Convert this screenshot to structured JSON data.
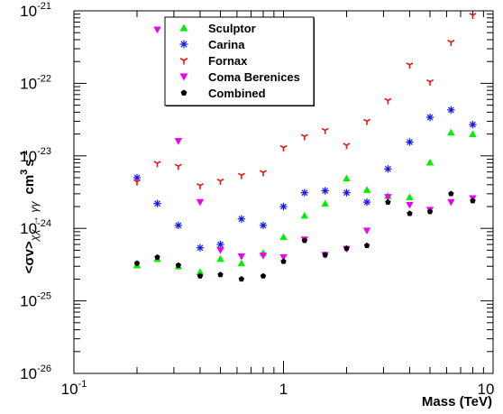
{
  "chart_data": {
    "type": "scatter",
    "xlabel": "Mass (TeV)",
    "ylabel": "<σv>χχ → γγ cm³ s⁻¹",
    "ylabel_parts": {
      "main": "<σv>",
      "sub": "χχ → γγ",
      "unit": "cm",
      "unit_exp": "3",
      "unit2": "s",
      "unit2_exp": "-1"
    },
    "x_scale": "log",
    "y_scale": "log",
    "xlim": [
      0.1,
      10
    ],
    "ylim": [
      1e-26,
      1e-21
    ],
    "x_tick_labels": [
      {
        "value": 0.1,
        "base": "10",
        "exp": "-1"
      },
      {
        "value": 1,
        "base": "1",
        "exp": ""
      },
      {
        "value": 10,
        "base": "10",
        "exp": ""
      }
    ],
    "y_tick_labels": [
      {
        "value": 1e-26,
        "base": "10",
        "exp": "-26"
      },
      {
        "value": 1e-25,
        "base": "10",
        "exp": "-25"
      },
      {
        "value": 1e-24,
        "base": "10",
        "exp": "-24"
      },
      {
        "value": 1e-23,
        "base": "10",
        "exp": "-23"
      },
      {
        "value": 1e-22,
        "base": "10",
        "exp": "-22"
      },
      {
        "value": 1e-21,
        "base": "10",
        "exp": "-21"
      }
    ],
    "legend_position": "top-center",
    "x": [
      0.2,
      0.25,
      0.315,
      0.4,
      0.5,
      0.63,
      0.8,
      1.0,
      1.26,
      1.58,
      2.0,
      2.5,
      3.15,
      4.0,
      5.0,
      6.3,
      8.0
    ],
    "series": [
      {
        "name": "Sculptor",
        "color": "#00ee00",
        "marker": "triangle-up",
        "values": [
          3.1e-25,
          3.8e-25,
          3e-25,
          2.5e-25,
          3.8e-25,
          3.3e-25,
          4.6e-25,
          7.6e-25,
          1.5e-24,
          2.2e-24,
          4.9e-24,
          3.4e-24,
          2.8e-24,
          2.7e-24,
          8.1e-24,
          2.1e-23,
          2e-23
        ]
      },
      {
        "name": "Carina",
        "color": "#1515ee",
        "marker": "asterisk",
        "values": [
          5e-24,
          2.2e-24,
          1.1e-24,
          5.4e-25,
          6e-25,
          1.35e-24,
          1.1e-24,
          2e-24,
          3.1e-24,
          3.3e-24,
          3.1e-24,
          2.3e-24,
          6.6e-24,
          1.55e-23,
          3.4e-23,
          4.3e-23,
          2.7e-23
        ]
      },
      {
        "name": "Fornax",
        "color": "#ee1111",
        "marker": "tri-star",
        "values": [
          4.4e-24,
          7.9e-24,
          7.2e-24,
          3.9e-24,
          4.5e-24,
          5.4e-24,
          5.9e-24,
          1.3e-23,
          1.85e-23,
          2.25e-23,
          1.4e-23,
          3e-23,
          5.8e-23,
          1.8e-22,
          1.05e-22,
          3.7e-22,
          8.7e-22
        ]
      },
      {
        "name": "Coma Berenices",
        "color": "#ee00ee",
        "marker": "triangle-down",
        "values": [
          null,
          5.5e-22,
          1.6e-23,
          2.3e-24,
          5e-25,
          4.1e-25,
          4.2e-25,
          4e-25,
          7e-25,
          4.3e-25,
          5.2e-25,
          9.3e-25,
          2.7e-24,
          2.1e-24,
          1.8e-24,
          2.3e-24,
          2.6e-24
        ]
      },
      {
        "name": "Combined",
        "color": "#000000",
        "marker": "pentagon",
        "values": [
          3.3e-25,
          4e-25,
          3.1e-25,
          2.2e-25,
          2.3e-25,
          2e-25,
          2.2e-25,
          3.5e-25,
          6.8e-25,
          4.3e-25,
          5.3e-25,
          5.8e-25,
          2.3e-24,
          1.6e-24,
          1.7e-24,
          3e-24,
          2.4e-24
        ]
      }
    ]
  }
}
